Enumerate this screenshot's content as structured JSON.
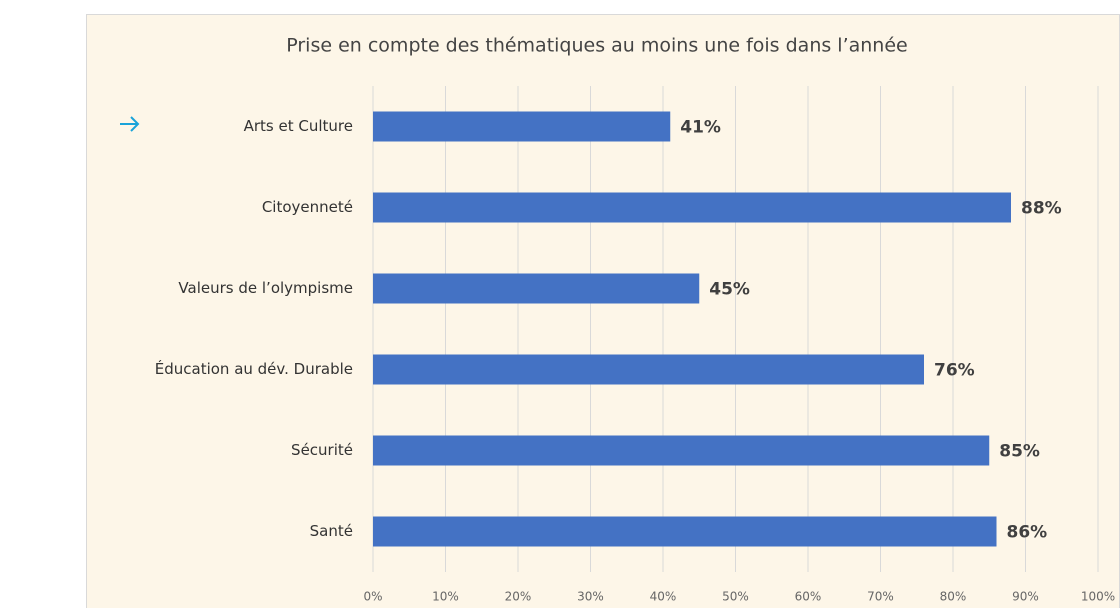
{
  "chart_data": {
    "type": "bar",
    "orientation": "horizontal",
    "title": "Prise en compte des thématiques au moins une fois dans l’année",
    "categories": [
      "Arts et Culture",
      "Citoyenneté",
      "Valeurs de l’olympisme",
      "Éducation au dév. Durable",
      "Sécurité",
      "Santé"
    ],
    "values": [
      41,
      88,
      45,
      76,
      85,
      86
    ],
    "value_labels": [
      "41%",
      "88%",
      "45%",
      "76%",
      "85%",
      "86%"
    ],
    "color": "#4472c4",
    "xlim": [
      0,
      100
    ],
    "xticks": [
      {
        "value": 0,
        "label": "0%"
      },
      {
        "value": 10,
        "label": "10%"
      },
      {
        "value": 20,
        "label": "20%"
      },
      {
        "value": 30,
        "label": "30%"
      },
      {
        "value": 40,
        "label": "40%"
      },
      {
        "value": 50,
        "label": "50%"
      },
      {
        "value": 60,
        "label": "60%"
      },
      {
        "value": 70,
        "label": "70%"
      },
      {
        "value": 80,
        "label": "80%"
      },
      {
        "value": 90,
        "label": "90%"
      },
      {
        "value": 100,
        "label": "100%"
      }
    ],
    "grid": true
  }
}
